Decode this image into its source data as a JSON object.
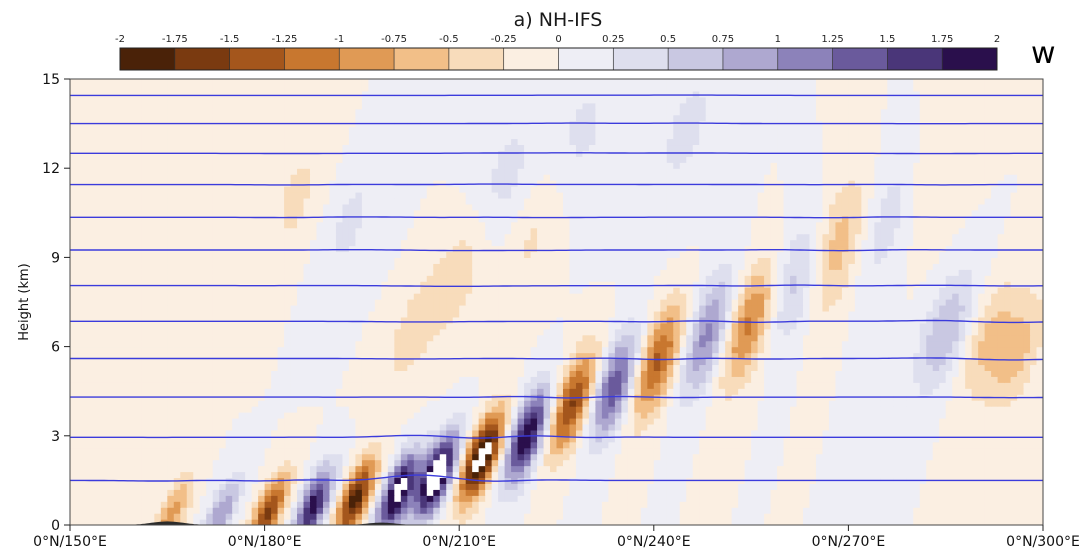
{
  "chart_data": {
    "type": "heatmap",
    "title": "a) NH-IFS",
    "variable_label": "w",
    "ylabel": "Height (km)",
    "xlabel": "",
    "xlim": [
      150,
      300
    ],
    "ylim": [
      0,
      15
    ],
    "x_ticks": [
      {
        "value": 150,
        "label": "0°N/150°E"
      },
      {
        "value": 180,
        "label": "0°N/180°E"
      },
      {
        "value": 210,
        "label": "0°N/210°E"
      },
      {
        "value": 240,
        "label": "0°N/240°E"
      },
      {
        "value": 270,
        "label": "0°N/270°E"
      },
      {
        "value": 300,
        "label": "0°N/300°E"
      }
    ],
    "y_ticks": [
      {
        "value": 0,
        "label": "0"
      },
      {
        "value": 3,
        "label": "3"
      },
      {
        "value": 6,
        "label": "6"
      },
      {
        "value": 9,
        "label": "9"
      },
      {
        "value": 12,
        "label": "12"
      },
      {
        "value": 15,
        "label": "15"
      }
    ],
    "colorbar": {
      "levels": [
        -2,
        -1.75,
        -1.5,
        -1.25,
        -1,
        -0.75,
        -0.5,
        -0.25,
        0,
        0.25,
        0.5,
        0.75,
        1,
        1.25,
        1.5,
        1.75,
        2
      ],
      "labels": [
        "-2",
        "-1.75",
        "-1.5",
        "-1.25",
        "-1",
        "-0.75",
        "-0.5",
        "-0.25",
        "0",
        "0.25",
        "0.5",
        "0.75",
        "1",
        "1.25",
        "1.5",
        "1.75",
        "2"
      ],
      "colors": [
        "#4a2208",
        "#7a3a10",
        "#a4561c",
        "#c8772f",
        "#e09a55",
        "#f2bf88",
        "#f8dcbb",
        "#fbefe2",
        "#eeeef5",
        "#dedfee",
        "#c9c8e2",
        "#aea8d0",
        "#8c82ba",
        "#6a5a9c",
        "#4a3679",
        "#2a0f4c"
      ]
    },
    "isentropes_km": [
      1.5,
      2.95,
      4.3,
      5.6,
      6.85,
      8.05,
      9.25,
      10.35,
      11.45,
      12.5,
      13.5,
      14.45
    ],
    "terrain": [
      {
        "x_center": 165,
        "half_width": 7,
        "peak_height": 0.12
      },
      {
        "x_center": 198,
        "half_width": 6,
        "peak_height": 0.08
      }
    ],
    "wave_packets": [
      {
        "x": 165.7,
        "z": 0.35,
        "w": -0.9
      },
      {
        "x": 173.2,
        "z": 0.35,
        "w": 1.0
      },
      {
        "x": 180.6,
        "z": 0.45,
        "w": -1.6
      },
      {
        "x": 187.5,
        "z": 0.65,
        "w": 1.9
      },
      {
        "x": 194.0,
        "z": 0.9,
        "w": -1.9
      },
      {
        "x": 200.5,
        "z": 1.1,
        "w": 2.2
      },
      {
        "x": 206.5,
        "z": 1.65,
        "w": 2.5
      },
      {
        "x": 213.5,
        "z": 2.3,
        "w": -2.3
      },
      {
        "x": 220.5,
        "z": 3.05,
        "w": 2.05
      },
      {
        "x": 227.5,
        "z": 4.1,
        "w": -1.6
      },
      {
        "x": 234.0,
        "z": 4.7,
        "w": 1.55
      },
      {
        "x": 240.5,
        "z": 5.5,
        "w": -1.4
      },
      {
        "x": 248.5,
        "z": 6.4,
        "w": 1.2
      },
      {
        "x": 254.5,
        "z": 6.8,
        "w": -1.25
      },
      {
        "x": 262.0,
        "z": 8.2,
        "w": 0.8
      },
      {
        "x": 268.0,
        "z": 9.3,
        "w": -0.8
      },
      {
        "x": 276.0,
        "z": 10.3,
        "w": 0.5
      },
      {
        "x": 285.0,
        "z": 6.5,
        "w": 0.75
      },
      {
        "x": 291.5,
        "z": 6.3,
        "w": -0.55
      },
      {
        "x": 296.0,
        "z": 5.8,
        "w": -0.6
      },
      {
        "x": 202.5,
        "z": 6.4,
        "w": -0.35
      },
      {
        "x": 210.5,
        "z": 8.7,
        "w": -0.45
      },
      {
        "x": 216.5,
        "z": 11.2,
        "w": 0.4
      },
      {
        "x": 222.0,
        "z": 10.2,
        "w": -0.4
      },
      {
        "x": 228.0,
        "z": 12.8,
        "w": 0.35
      },
      {
        "x": 185.0,
        "z": 11.0,
        "w": -0.3
      },
      {
        "x": 193.0,
        "z": 10.2,
        "w": 0.3
      },
      {
        "x": 245.0,
        "z": 13.3,
        "w": 0.3
      },
      {
        "x": 282.0,
        "z": 11.5,
        "w": -0.3
      }
    ]
  }
}
